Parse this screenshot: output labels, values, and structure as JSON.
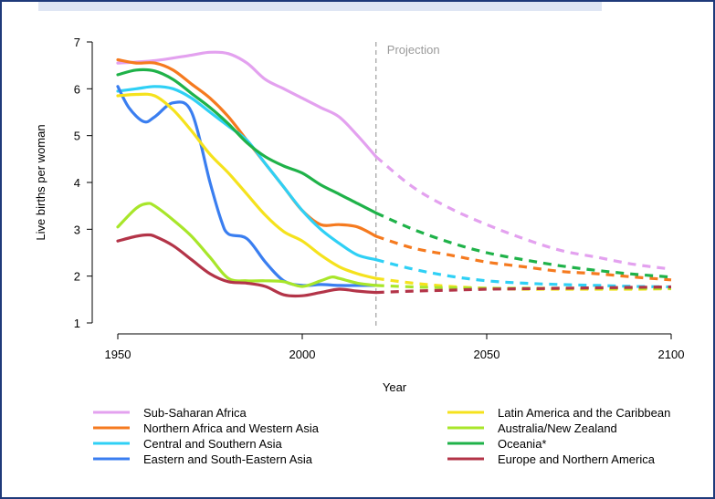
{
  "chart_data": {
    "type": "line",
    "title": "",
    "xlabel": "Year",
    "ylabel": "Live births per woman",
    "xlim": [
      1950,
      2100
    ],
    "ylim": [
      1,
      7
    ],
    "xticks": [
      1950,
      2000,
      2050,
      2100
    ],
    "yticks": [
      1,
      2,
      3,
      4,
      5,
      6,
      7
    ],
    "projection_start": 2020,
    "projection_label": "Projection",
    "grid": false,
    "legend_position": "bottom",
    "series": [
      {
        "name": "Sub-Saharan Africa",
        "color": "#e3a1ef",
        "x": [
          1950,
          1960,
          1970,
          1975,
          1980,
          1985,
          1990,
          1995,
          2000,
          2005,
          2010,
          2015,
          2020,
          2030,
          2040,
          2050,
          2060,
          2070,
          2080,
          2090,
          2100
        ],
        "y": [
          6.55,
          6.6,
          6.72,
          6.78,
          6.75,
          6.55,
          6.2,
          6.0,
          5.8,
          5.6,
          5.4,
          5.0,
          4.55,
          3.9,
          3.45,
          3.1,
          2.8,
          2.55,
          2.4,
          2.25,
          2.15
        ]
      },
      {
        "name": "Northern Africa and Western Asia",
        "color": "#f57a1f",
        "x": [
          1950,
          1955,
          1960,
          1965,
          1970,
          1975,
          1980,
          1985,
          1990,
          1995,
          2000,
          2005,
          2010,
          2015,
          2020,
          2030,
          2040,
          2050,
          2060,
          2070,
          2080,
          2090,
          2100
        ],
        "y": [
          6.62,
          6.55,
          6.55,
          6.4,
          6.1,
          5.8,
          5.4,
          4.9,
          4.4,
          3.9,
          3.4,
          3.1,
          3.1,
          3.05,
          2.85,
          2.6,
          2.45,
          2.3,
          2.2,
          2.1,
          2.05,
          1.98,
          1.92
        ]
      },
      {
        "name": "Central and Southern Asia",
        "color": "#2fd0f5",
        "x": [
          1950,
          1955,
          1960,
          1965,
          1970,
          1975,
          1980,
          1985,
          1990,
          1995,
          2000,
          2005,
          2010,
          2015,
          2020,
          2030,
          2040,
          2050,
          2060,
          2070,
          2080,
          2090,
          2100
        ],
        "y": [
          5.95,
          6.0,
          6.05,
          6.0,
          5.8,
          5.5,
          5.2,
          4.9,
          4.4,
          3.9,
          3.4,
          3.0,
          2.7,
          2.45,
          2.35,
          2.15,
          2.0,
          1.9,
          1.85,
          1.82,
          1.8,
          1.78,
          1.77
        ]
      },
      {
        "name": "Eastern and South-Eastern Asia",
        "color": "#3a7ef0",
        "x": [
          1950,
          1953,
          1957,
          1960,
          1965,
          1970,
          1975,
          1978,
          1980,
          1985,
          1990,
          1995,
          2000,
          2005,
          2010,
          2015,
          2020
        ],
        "y": [
          6.05,
          5.6,
          5.3,
          5.4,
          5.7,
          5.5,
          4.0,
          3.2,
          2.9,
          2.8,
          2.3,
          1.9,
          1.8,
          1.82,
          1.8,
          1.8,
          1.8
        ]
      },
      {
        "name": "Latin America and the Caribbean",
        "color": "#f5e21d",
        "x": [
          1950,
          1955,
          1960,
          1965,
          1970,
          1975,
          1980,
          1985,
          1990,
          1995,
          2000,
          2005,
          2010,
          2015,
          2020,
          2030,
          2040,
          2050,
          2060,
          2070,
          2080,
          2090,
          2100
        ],
        "y": [
          5.85,
          5.88,
          5.85,
          5.55,
          5.1,
          4.6,
          4.2,
          3.75,
          3.3,
          2.95,
          2.75,
          2.45,
          2.2,
          2.05,
          1.95,
          1.85,
          1.78,
          1.74,
          1.72,
          1.72,
          1.72,
          1.72,
          1.73
        ]
      },
      {
        "name": "Australia/New Zealand",
        "color": "#a8e62a",
        "x": [
          1950,
          1955,
          1958,
          1960,
          1965,
          1970,
          1975,
          1980,
          1985,
          1990,
          1995,
          2000,
          2005,
          2008,
          2010,
          2015,
          2020,
          2030,
          2040,
          2050,
          2060,
          2070,
          2080,
          2090,
          2100
        ],
        "y": [
          3.05,
          3.45,
          3.55,
          3.5,
          3.2,
          2.85,
          2.4,
          1.95,
          1.9,
          1.9,
          1.88,
          1.78,
          1.9,
          1.98,
          1.95,
          1.85,
          1.8,
          1.77,
          1.75,
          1.74,
          1.74,
          1.74,
          1.74,
          1.74,
          1.74
        ]
      },
      {
        "name": "Oceania*",
        "color": "#1fb249",
        "x": [
          1950,
          1955,
          1960,
          1965,
          1970,
          1975,
          1980,
          1985,
          1990,
          1995,
          2000,
          2005,
          2010,
          2015,
          2020,
          2030,
          2040,
          2050,
          2060,
          2070,
          2080,
          2090,
          2100
        ],
        "y": [
          6.3,
          6.4,
          6.38,
          6.2,
          5.9,
          5.6,
          5.25,
          4.85,
          4.55,
          4.35,
          4.2,
          3.95,
          3.75,
          3.55,
          3.35,
          3.0,
          2.72,
          2.5,
          2.35,
          2.22,
          2.12,
          2.04,
          1.98
        ]
      },
      {
        "name": "Europe and Northern America",
        "color": "#b33448",
        "x": [
          1950,
          1955,
          1958,
          1960,
          1965,
          1970,
          1975,
          1980,
          1985,
          1990,
          1995,
          2000,
          2005,
          2010,
          2015,
          2020,
          2030,
          2040,
          2050,
          2060,
          2070,
          2080,
          2090,
          2100
        ],
        "y": [
          2.75,
          2.85,
          2.88,
          2.85,
          2.65,
          2.35,
          2.05,
          1.88,
          1.85,
          1.78,
          1.6,
          1.58,
          1.65,
          1.72,
          1.68,
          1.65,
          1.68,
          1.7,
          1.72,
          1.73,
          1.74,
          1.75,
          1.76,
          1.77
        ]
      }
    ]
  }
}
